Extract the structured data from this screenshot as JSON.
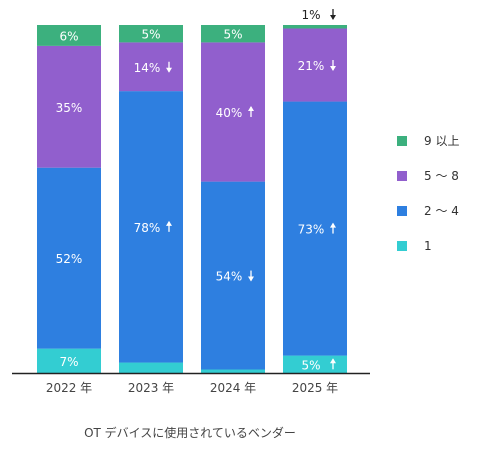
{
  "chart_data": {
    "type": "bar",
    "stacked": true,
    "xlabel": "OT デバイスに使用されているベンダー",
    "categories": [
      "2022 年",
      "2023 年",
      "2024 年",
      "2025 年"
    ],
    "ylim": [
      0,
      100
    ],
    "series": [
      {
        "name": "1",
        "color": "#33CDD2",
        "values": [
          7,
          3,
          1,
          5
        ],
        "labels": [
          "7%",
          "3%",
          "1%",
          "5%"
        ],
        "trend": [
          "",
          "down",
          "down",
          "up"
        ]
      },
      {
        "name": "2 ～ 4",
        "color": "#2E7FE0",
        "values": [
          52,
          78,
          54,
          73
        ],
        "labels": [
          "52%",
          "78%",
          "54%",
          "73%"
        ],
        "trend": [
          "",
          "up",
          "down",
          "up"
        ]
      },
      {
        "name": "5 ～ 8",
        "color": "#915FCD",
        "values": [
          35,
          14,
          40,
          21
        ],
        "labels": [
          "35%",
          "14%",
          "40%",
          "21%"
        ],
        "trend": [
          "",
          "down",
          "up",
          "down"
        ]
      },
      {
        "name": "9 以上",
        "color": "#3CB07E",
        "values": [
          6,
          5,
          5,
          1
        ],
        "labels": [
          "6%",
          "5%",
          "5%",
          "1%"
        ],
        "trend": [
          "",
          "",
          "",
          "down"
        ]
      }
    ],
    "legend_position": "right",
    "legend_order": [
      "9 以上",
      "5 ～ 8",
      "2 ～ 4",
      "1"
    ],
    "grid": false
  }
}
